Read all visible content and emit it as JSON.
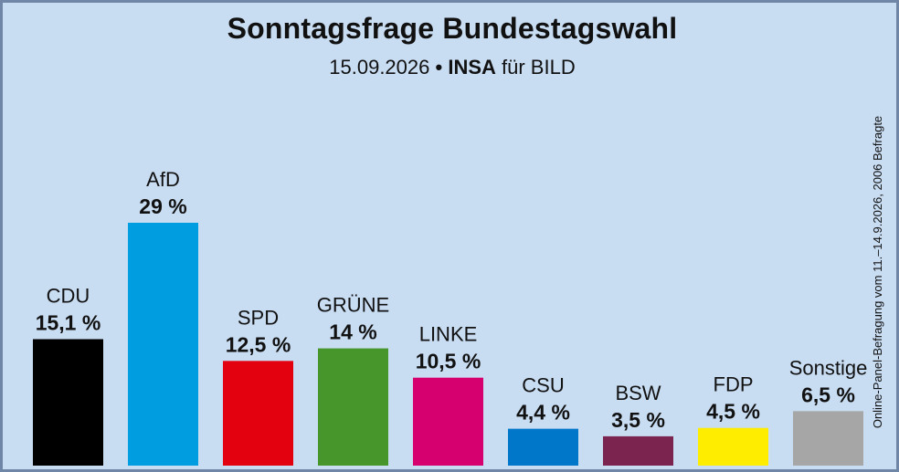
{
  "title": "Sonntagsfrage Bundestagswahl",
  "subtitle": {
    "date": "15.09.2026",
    "bullet": "•",
    "institute": "INSA",
    "client": "für BILD"
  },
  "side_note": "Online-Panel-Befragung vom 11.–14.9.2026, 2006 Befragte",
  "chart_data": {
    "type": "bar",
    "title": "Sonntagsfrage Bundestagswahl",
    "subtitle": "15.09.2026 • INSA für BILD",
    "categories": [
      "CDU",
      "AfD",
      "SPD",
      "GRÜNE",
      "LINKE",
      "CSU",
      "BSW",
      "FDP",
      "Sonstige"
    ],
    "values": [
      15.1,
      29,
      12.5,
      14,
      10.5,
      4.4,
      3.5,
      4.5,
      6.5
    ],
    "value_labels": [
      "15,1 %",
      "29 %",
      "12,5 %",
      "14 %",
      "10,5 %",
      "4,4 %",
      "3,5 %",
      "4,5 %",
      "6,5 %"
    ],
    "colors": [
      "#000000",
      "#009ee0",
      "#e3000f",
      "#46962b",
      "#d6006e",
      "#0077c8",
      "#7b2450",
      "#ffed00",
      "#a6a6a6"
    ],
    "xlabel": "",
    "ylabel": "",
    "ylim": [
      0,
      30
    ],
    "grid": false,
    "legend": "none"
  }
}
